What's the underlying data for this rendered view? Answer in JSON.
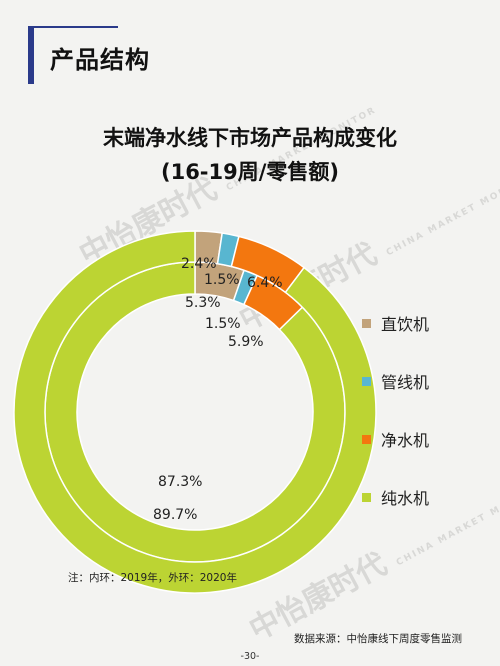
{
  "section": {
    "title": "产品结构"
  },
  "chart_data": {
    "type": "donut",
    "title": "末端净水线下市场产品构成变化",
    "subtitle": "(16-19周/零售额)",
    "categories": [
      "直饮机",
      "管线机",
      "净水机",
      "纯水机"
    ],
    "colors": [
      "#c2a37b",
      "#58b6d0",
      "#f3770f",
      "#bcd433"
    ],
    "series": [
      {
        "values": [
          5.3,
          1.5,
          5.9,
          87.3
        ],
        "labels": [
          "5.3%",
          "1.5%",
          "5.9%",
          "87.3%"
        ]
      },
      {
        "values": [
          2.4,
          1.5,
          6.4,
          89.7
        ],
        "labels": [
          "2.4%",
          "1.5%",
          "6.4%",
          "89.7%"
        ]
      }
    ],
    "note": "注：内环：2019年，外环：2020年"
  },
  "watermark": {
    "brand": "中怡康时代",
    "brand_en": "CHINA MARKET MONITOR"
  },
  "footer": {
    "source": "数据来源：中怡康线下周度零售监测",
    "page": "-30-"
  }
}
